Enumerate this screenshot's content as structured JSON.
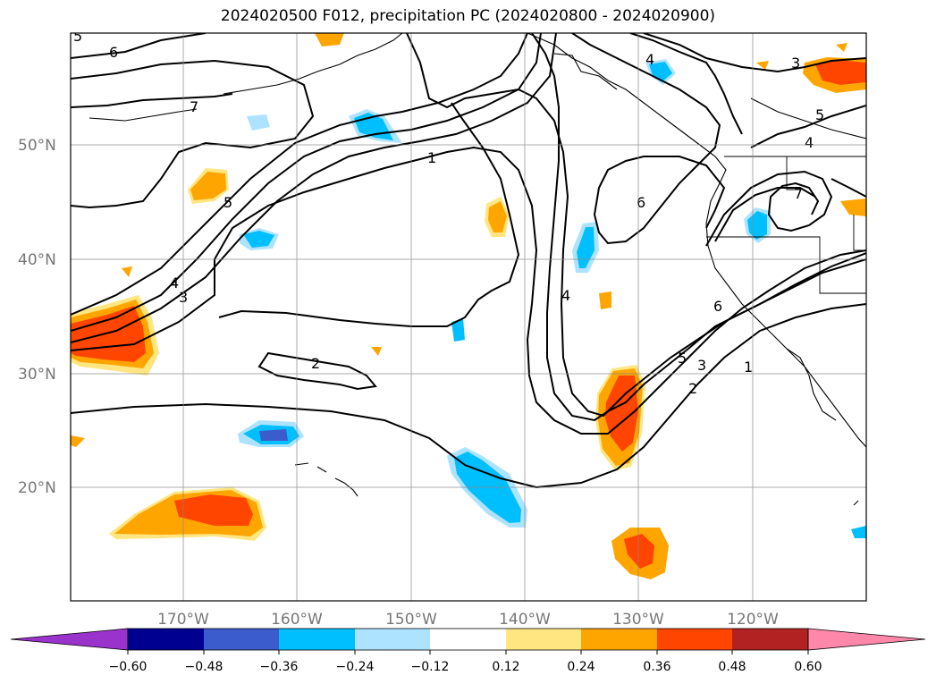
{
  "title": "2024020500 F012, precipitation PC (2024020800 - 2024020900)",
  "lat_labels": [
    "50°N",
    "40°N",
    "30°N",
    "20°N"
  ],
  "lon_labels": [
    "170°W",
    "160°W",
    "150°W",
    "140°W",
    "130°W",
    "120°W"
  ],
  "colorbar": {
    "ticks": [
      "−0.60",
      "−0.48",
      "−0.36",
      "−0.24",
      "−0.12",
      "0.12",
      "0.24",
      "0.36",
      "0.48",
      "0.60"
    ],
    "colors": [
      "#9933cc",
      "#000090",
      "#3a5ccc",
      "#00bfff",
      "#ade3ff",
      "#ffffff",
      "#ffe680",
      "#ffa500",
      "#ff4500",
      "#b22222",
      "#ff88aa"
    ]
  },
  "contour_labels": [
    "6",
    "7",
    "5",
    "4",
    "3",
    "1",
    "2",
    "6",
    "4",
    "5",
    "3",
    "2",
    "1",
    "6",
    "3",
    "5",
    "4",
    "4",
    "7",
    "5"
  ],
  "shading_colors": {
    "orange": "#ffa500",
    "red_orange": "#ff4500",
    "light_yellow": "#ffe680",
    "sky_blue": "#00bfff",
    "light_blue": "#ade3ff",
    "mid_blue": "#3a5ccc"
  }
}
